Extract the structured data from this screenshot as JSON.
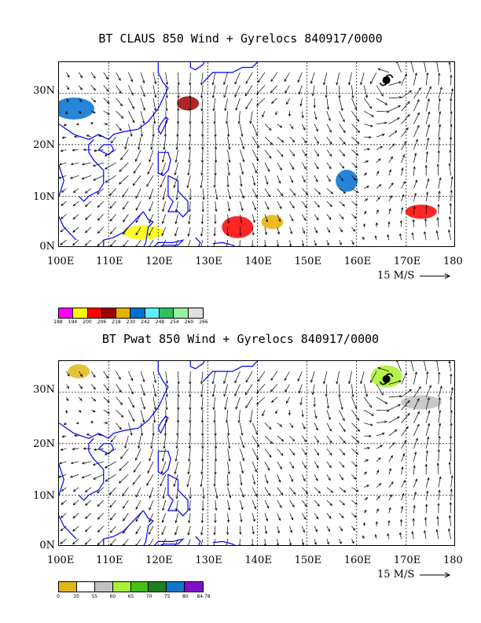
{
  "maps": [
    {
      "title": "BT CLAUS 850 Wind + Gyrelocs 840917/0000",
      "x_ticks": [
        "100E",
        "110E",
        "120E",
        "130E",
        "140E",
        "150E",
        "160E",
        "170E",
        "180"
      ],
      "y_ticks": [
        "30N",
        "20N",
        "10N",
        "0N"
      ],
      "scale_label": "15 M/S",
      "legend": {
        "colors": [
          "#ff00ff",
          "#ffff00",
          "#ff0000",
          "#a00000",
          "#e8b000",
          "#0070d0",
          "#5cf0ff",
          "#30c060",
          "#98f0a0",
          "#e0e0e0"
        ],
        "labels": [
          "188",
          "194",
          "200",
          "206",
          "218",
          "230",
          "242",
          "248",
          "254",
          "260",
          "266"
        ]
      },
      "fields": [
        {
          "lon": 126,
          "lat": 28,
          "color": "#a00000"
        },
        {
          "lon": 136,
          "lat": 4,
          "color": "#ff0000"
        },
        {
          "lon": 117,
          "lat": 3,
          "color": "#ffff00"
        },
        {
          "lon": 158,
          "lat": 13,
          "color": "#0070d0"
        },
        {
          "lon": 173,
          "lat": 7,
          "color": "#ff0000"
        },
        {
          "lon": 103,
          "lat": 27,
          "color": "#0070d0"
        },
        {
          "lon": 143,
          "lat": 5,
          "color": "#e8b000"
        }
      ]
    },
    {
      "title": "BT Pwat 850 Wind + Gyrelocs 840917/0000",
      "x_ticks": [
        "100E",
        "110E",
        "120E",
        "130E",
        "140E",
        "150E",
        "160E",
        "170E",
        "180"
      ],
      "y_ticks": [
        "30N",
        "20N",
        "10N",
        "0N"
      ],
      "scale_label": "15 M/S",
      "legend": {
        "colors": [
          "#e0b818",
          "#ffffff",
          "#c0c0c0",
          "#a8f030",
          "#48c018",
          "#208020",
          "#1078c8",
          "#8010c8"
        ],
        "labels": [
          "0",
          "35",
          "55",
          "60",
          "65",
          "70",
          "75",
          "80",
          "84.78"
        ]
      },
      "fields": [
        {
          "lon": 104,
          "lat": 34,
          "color": "#e0b818"
        },
        {
          "lon": 166,
          "lat": 33,
          "color": "#a8f030"
        },
        {
          "lon": 173,
          "lat": 28,
          "color": "#c0c0c0"
        }
      ]
    }
  ],
  "colors": {
    "coast": "#0000ff",
    "grid": "#000000"
  }
}
